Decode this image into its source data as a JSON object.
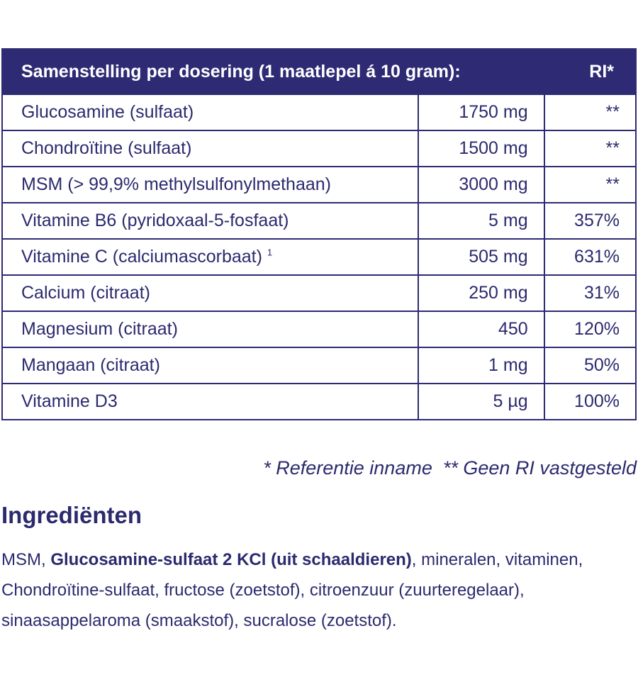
{
  "table": {
    "header": [
      "Samenstelling per dosering (1 maatlepel á 10 gram):",
      "RI*"
    ],
    "rows": [
      [
        "Glucosamine (sulfaat)",
        "1750 mg",
        "**"
      ],
      [
        "Chondroïtine (sulfaat)",
        "1500 mg",
        "**"
      ],
      [
        "MSM (> 99,9% methylsulfonylmethaan)",
        "3000 mg",
        "**"
      ],
      [
        "Vitamine B6 (pyridoxaal-5-fosfaat)",
        "5 mg",
        "357%"
      ],
      [
        "Vitamine C (calciumascorbaat)",
        "505 mg",
        "631%"
      ],
      [
        "Calcium (citraat)",
        "250 mg",
        "31%"
      ],
      [
        "Magnesium (citraat)",
        "450",
        "120%"
      ],
      [
        "Mangaan (citraat)",
        "1 mg",
        "50%"
      ],
      [
        "Vitamine D3",
        "5 µg",
        "100%"
      ]
    ],
    "superscripts": {
      "4": "1"
    }
  },
  "footnote": "* Referentie inname  ** Geen RI vastgesteld",
  "ingredients": {
    "title": "Ingrediënten",
    "text": [
      "MSM, ",
      "Glucosamine-sulfaat 2 KCl (uit schaaldieren)",
      ", mineralen, vitaminen, Chondroïtine-sulfaat, fructose (zoetstof), citroenzuur (zuurteregelaar), sinaasappelaroma (smaakstof), sucralose (zoetstof)."
    ]
  }
}
